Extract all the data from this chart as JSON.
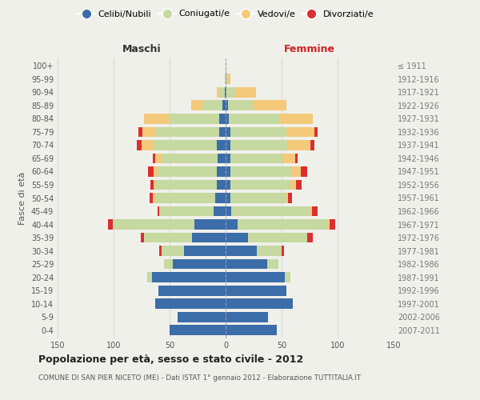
{
  "age_groups": [
    "0-4",
    "5-9",
    "10-14",
    "15-19",
    "20-24",
    "25-29",
    "30-34",
    "35-39",
    "40-44",
    "45-49",
    "50-54",
    "55-59",
    "60-64",
    "65-69",
    "70-74",
    "75-79",
    "80-84",
    "85-89",
    "90-94",
    "95-99",
    "100+"
  ],
  "birth_years": [
    "2007-2011",
    "2002-2006",
    "1997-2001",
    "1992-1996",
    "1987-1991",
    "1982-1986",
    "1977-1981",
    "1972-1976",
    "1967-1971",
    "1962-1966",
    "1957-1961",
    "1952-1956",
    "1947-1951",
    "1942-1946",
    "1937-1941",
    "1932-1936",
    "1927-1931",
    "1922-1926",
    "1917-1921",
    "1912-1916",
    "≤ 1911"
  ],
  "colors": {
    "celibe": "#3b6da8",
    "coniugato": "#c5d9a0",
    "vedovo": "#f5c97a",
    "divorziato": "#d93030"
  },
  "maschi": {
    "celibe": [
      50,
      43,
      63,
      60,
      66,
      47,
      37,
      30,
      28,
      11,
      9,
      8,
      8,
      7,
      8,
      6,
      6,
      3,
      1,
      0,
      0
    ],
    "coniugato": [
      0,
      0,
      0,
      0,
      4,
      8,
      20,
      43,
      73,
      48,
      54,
      54,
      53,
      50,
      56,
      57,
      45,
      18,
      4,
      1,
      0
    ],
    "vedovo": [
      0,
      0,
      0,
      0,
      0,
      0,
      0,
      0,
      0,
      0,
      2,
      2,
      3,
      6,
      11,
      11,
      22,
      10,
      3,
      0,
      0
    ],
    "divorziato": [
      0,
      0,
      0,
      0,
      0,
      0,
      2,
      3,
      4,
      2,
      3,
      3,
      5,
      2,
      4,
      4,
      0,
      0,
      0,
      0,
      0
    ]
  },
  "femmine": {
    "nubile": [
      46,
      38,
      60,
      54,
      53,
      37,
      28,
      20,
      11,
      5,
      4,
      4,
      4,
      4,
      4,
      4,
      3,
      2,
      1,
      0,
      0
    ],
    "coniugata": [
      0,
      0,
      0,
      0,
      5,
      10,
      22,
      53,
      80,
      70,
      50,
      54,
      55,
      47,
      52,
      50,
      45,
      22,
      8,
      2,
      0
    ],
    "vedova": [
      0,
      0,
      0,
      0,
      0,
      0,
      0,
      0,
      2,
      2,
      2,
      5,
      8,
      11,
      20,
      25,
      30,
      30,
      18,
      2,
      1
    ],
    "divorziata": [
      0,
      0,
      0,
      0,
      0,
      0,
      2,
      5,
      5,
      5,
      3,
      5,
      6,
      2,
      3,
      3,
      0,
      0,
      0,
      0,
      0
    ]
  },
  "xlim": 150,
  "title": "Popolazione per età, sesso e stato civile - 2012",
  "subtitle": "COMUNE DI SAN PIER NICETO (ME) - Dati ISTAT 1° gennaio 2012 - Elaborazione TUTTITALIA.IT",
  "ylabel": "Fasce di età",
  "xlabel_left": "Maschi",
  "xlabel_right": "Femmine",
  "bg_color": "#f0f0eb",
  "grid_color": "#cccccc"
}
